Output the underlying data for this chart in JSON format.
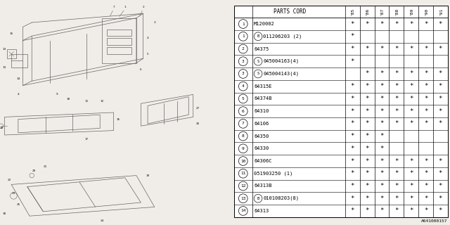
{
  "title": "A641000157",
  "header_col1": "PARTS CORD",
  "year_cols": [
    "'85",
    "'86",
    "'87",
    "'88",
    "'89",
    "'90",
    "'91"
  ],
  "rows": [
    {
      "num": "1",
      "prefix": "",
      "part": "M120002",
      "marks": [
        1,
        1,
        1,
        1,
        1,
        1,
        1
      ]
    },
    {
      "num": "1",
      "prefix": "B",
      "part": "011206203 (2)",
      "marks": [
        1,
        0,
        0,
        0,
        0,
        0,
        0
      ]
    },
    {
      "num": "2",
      "prefix": "",
      "part": "64375",
      "marks": [
        1,
        1,
        1,
        1,
        1,
        1,
        1
      ]
    },
    {
      "num": "3",
      "prefix": "S",
      "part": "045004163(4)",
      "marks": [
        1,
        0,
        0,
        0,
        0,
        0,
        0
      ]
    },
    {
      "num": "3",
      "prefix": "S",
      "part": "045004143(4)",
      "marks": [
        0,
        1,
        1,
        1,
        1,
        1,
        1
      ]
    },
    {
      "num": "4",
      "prefix": "",
      "part": "64315E",
      "marks": [
        1,
        1,
        1,
        1,
        1,
        1,
        1
      ]
    },
    {
      "num": "5",
      "prefix": "",
      "part": "64374B",
      "marks": [
        1,
        1,
        1,
        1,
        1,
        1,
        1
      ]
    },
    {
      "num": "6",
      "prefix": "",
      "part": "64310",
      "marks": [
        1,
        1,
        1,
        1,
        1,
        1,
        1
      ]
    },
    {
      "num": "7",
      "prefix": "",
      "part": "64106",
      "marks": [
        1,
        1,
        1,
        1,
        1,
        1,
        1
      ]
    },
    {
      "num": "8",
      "prefix": "",
      "part": "64350",
      "marks": [
        1,
        1,
        1,
        0,
        0,
        0,
        0
      ]
    },
    {
      "num": "9",
      "prefix": "",
      "part": "64330",
      "marks": [
        1,
        1,
        1,
        0,
        0,
        0,
        0
      ]
    },
    {
      "num": "10",
      "prefix": "",
      "part": "64306C",
      "marks": [
        1,
        1,
        1,
        1,
        1,
        1,
        1
      ]
    },
    {
      "num": "11",
      "prefix": "",
      "part": "051903250 (1)",
      "marks": [
        1,
        1,
        1,
        1,
        1,
        1,
        1
      ]
    },
    {
      "num": "12",
      "prefix": "",
      "part": "64313B",
      "marks": [
        1,
        1,
        1,
        1,
        1,
        1,
        1
      ]
    },
    {
      "num": "13",
      "prefix": "B",
      "part": "010108203(8)",
      "marks": [
        1,
        1,
        1,
        1,
        1,
        1,
        1
      ]
    },
    {
      "num": "14",
      "prefix": "",
      "part": "64313",
      "marks": [
        1,
        1,
        1,
        1,
        1,
        1,
        1
      ]
    }
  ],
  "bg_color": "#f0ede8",
  "table_bg": "#ffffff",
  "line_color": "#000000",
  "text_color": "#000000",
  "draw_color": "#666666",
  "font_size": 5.0,
  "header_font_size": 5.5,
  "num_font_size": 4.5,
  "year_font_size": 4.5,
  "mark_font_size": 6.5
}
